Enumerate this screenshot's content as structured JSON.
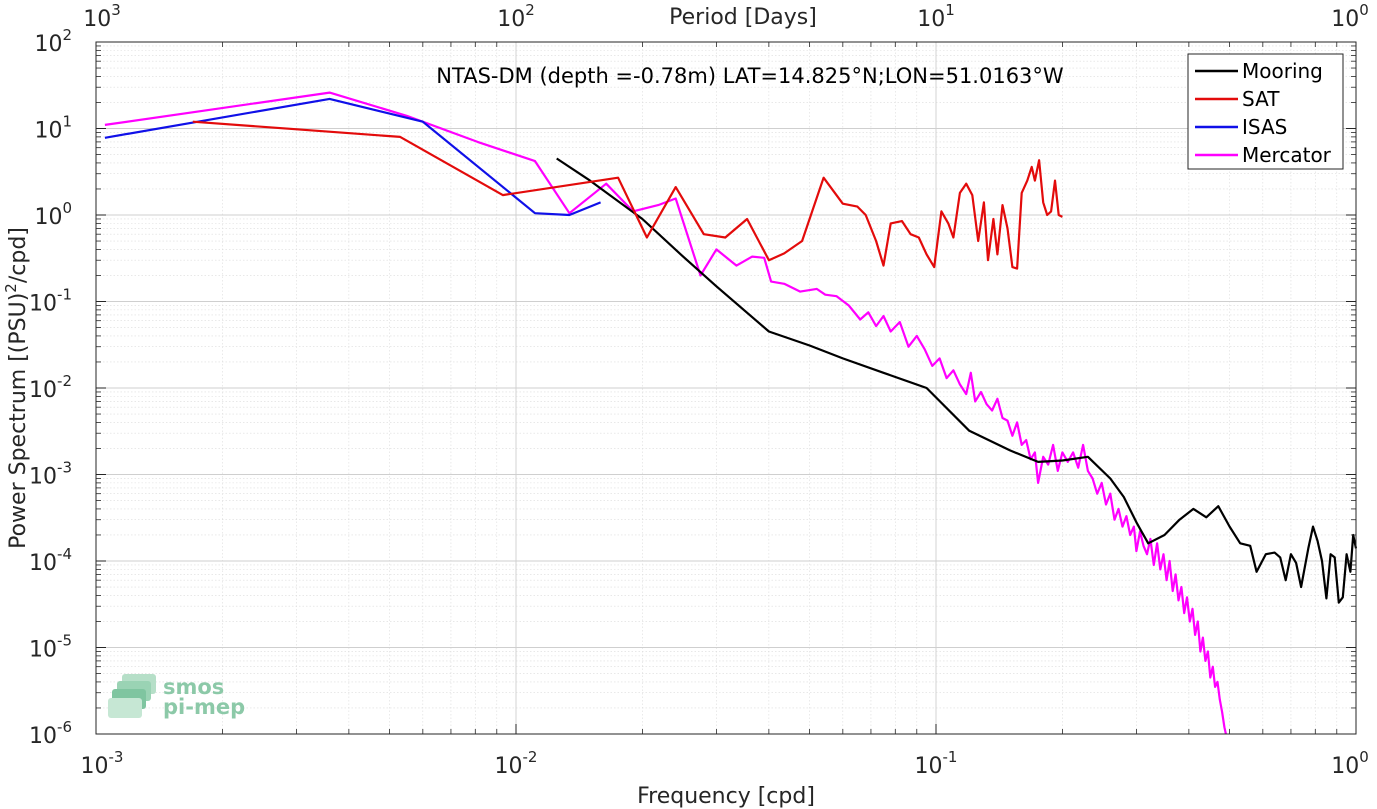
{
  "chart_data": {
    "type": "line",
    "title": "NTAS-DM (depth =-0.78m) LAT=14.825°N;LON=51.0163°W",
    "xlabel": "Frequency [cpd]",
    "ylabel_pre": "Power Spectrum [(PSU)",
    "ylabel_sup": "2",
    "ylabel_post": "/cpd]",
    "top_xlabel": "Period [Days]",
    "x_scale": "log",
    "y_scale": "log",
    "xlim": [
      0.001,
      1
    ],
    "ylim": [
      1e-06,
      100
    ],
    "top_xlim": [
      1000,
      1
    ],
    "grid": true,
    "legend_position": "top-right",
    "x_ticks": [
      {
        "base": "10",
        "exp": "-3",
        "value": 0.001
      },
      {
        "base": "10",
        "exp": "-2",
        "value": 0.01
      },
      {
        "base": "10",
        "exp": "-1",
        "value": 0.1
      },
      {
        "base": "10",
        "exp": "0",
        "value": 1
      }
    ],
    "top_ticks": [
      {
        "base": "10",
        "exp": "3",
        "value": 1000
      },
      {
        "base": "10",
        "exp": "2",
        "value": 100
      },
      {
        "base": "10",
        "exp": "1",
        "value": 10
      },
      {
        "base": "10",
        "exp": "0",
        "value": 1
      }
    ],
    "y_ticks": [
      {
        "base": "10",
        "exp": "2",
        "value": 100
      },
      {
        "base": "10",
        "exp": "1",
        "value": 10
      },
      {
        "base": "10",
        "exp": "0",
        "value": 1
      },
      {
        "base": "10",
        "exp": "-1",
        "value": 0.1
      },
      {
        "base": "10",
        "exp": "-2",
        "value": 0.01
      },
      {
        "base": "10",
        "exp": "-3",
        "value": 0.001
      },
      {
        "base": "10",
        "exp": "-4",
        "value": 0.0001
      },
      {
        "base": "10",
        "exp": "-5",
        "value": 1e-05
      },
      {
        "base": "10",
        "exp": "-6",
        "value": 1e-06
      }
    ],
    "series": [
      {
        "name": "Mooring",
        "color": "#000000",
        "points": [
          [
            0.0125,
            4.5
          ],
          [
            0.015,
            2.5
          ],
          [
            0.02,
            0.9
          ],
          [
            0.025,
            0.33
          ],
          [
            0.03,
            0.15
          ],
          [
            0.04,
            0.045
          ],
          [
            0.05,
            0.031
          ],
          [
            0.06,
            0.022
          ],
          [
            0.075,
            0.015
          ],
          [
            0.095,
            0.01
          ],
          [
            0.12,
            0.0032
          ],
          [
            0.15,
            0.0019
          ],
          [
            0.175,
            0.0014
          ],
          [
            0.2,
            0.00145
          ],
          [
            0.23,
            0.0016
          ],
          [
            0.26,
            0.0009
          ],
          [
            0.28,
            0.00055
          ],
          [
            0.3,
            0.00028
          ],
          [
            0.32,
            0.00016
          ],
          [
            0.35,
            0.0002
          ],
          [
            0.38,
            0.0003
          ],
          [
            0.41,
            0.0004
          ],
          [
            0.44,
            0.00032
          ],
          [
            0.47,
            0.00043
          ],
          [
            0.5,
            0.00025
          ],
          [
            0.53,
            0.00016
          ],
          [
            0.56,
            0.00015
          ],
          [
            0.58,
            7.5e-05
          ],
          [
            0.61,
            0.00012
          ],
          [
            0.64,
            0.000125
          ],
          [
            0.66,
            0.00011
          ],
          [
            0.68,
            6e-05
          ],
          [
            0.7,
            0.00012
          ],
          [
            0.72,
            9.5e-05
          ],
          [
            0.74,
            5e-05
          ],
          [
            0.77,
            0.00014
          ],
          [
            0.79,
            0.00025
          ],
          [
            0.81,
            0.00017
          ],
          [
            0.83,
            0.0001
          ],
          [
            0.85,
            3.7e-05
          ],
          [
            0.87,
            0.00012
          ],
          [
            0.89,
            0.00011
          ],
          [
            0.91,
            3.3e-05
          ],
          [
            0.93,
            3.8e-05
          ],
          [
            0.95,
            0.00012
          ],
          [
            0.97,
            7.5e-05
          ],
          [
            0.985,
            0.0002
          ],
          [
            1.0,
            0.00014
          ]
        ]
      },
      {
        "name": "SAT",
        "color": "#e30b0b",
        "points": [
          [
            0.0017,
            12
          ],
          [
            0.0053,
            8
          ],
          [
            0.0093,
            1.7
          ],
          [
            0.0175,
            2.7
          ],
          [
            0.0205,
            0.55
          ],
          [
            0.024,
            2.1
          ],
          [
            0.028,
            0.6
          ],
          [
            0.0315,
            0.55
          ],
          [
            0.0355,
            0.9
          ],
          [
            0.04,
            0.3
          ],
          [
            0.0435,
            0.36
          ],
          [
            0.048,
            0.5
          ],
          [
            0.054,
            2.7
          ],
          [
            0.06,
            1.35
          ],
          [
            0.065,
            1.25
          ],
          [
            0.068,
            1.0
          ],
          [
            0.072,
            0.5
          ],
          [
            0.075,
            0.26
          ],
          [
            0.078,
            0.8
          ],
          [
            0.083,
            0.85
          ],
          [
            0.087,
            0.6
          ],
          [
            0.091,
            0.55
          ],
          [
            0.095,
            0.35
          ],
          [
            0.099,
            0.25
          ],
          [
            0.103,
            1.1
          ],
          [
            0.107,
            0.8
          ],
          [
            0.11,
            0.55
          ],
          [
            0.114,
            1.8
          ],
          [
            0.118,
            2.3
          ],
          [
            0.122,
            1.7
          ],
          [
            0.126,
            0.5
          ],
          [
            0.13,
            1.4
          ],
          [
            0.133,
            0.3
          ],
          [
            0.137,
            0.9
          ],
          [
            0.14,
            0.35
          ],
          [
            0.144,
            1.3
          ],
          [
            0.148,
            0.7
          ],
          [
            0.152,
            0.25
          ],
          [
            0.156,
            0.24
          ],
          [
            0.16,
            1.8
          ],
          [
            0.165,
            2.5
          ],
          [
            0.169,
            3.6
          ],
          [
            0.172,
            2.5
          ],
          [
            0.176,
            4.3
          ],
          [
            0.18,
            1.4
          ],
          [
            0.184,
            1.0
          ],
          [
            0.188,
            1.1
          ],
          [
            0.192,
            2.5
          ],
          [
            0.196,
            1.0
          ],
          [
            0.2,
            0.95
          ]
        ]
      },
      {
        "name": "ISAS",
        "color": "#1010e8",
        "points": [
          [
            0.00105,
            7.8
          ],
          [
            0.0036,
            22
          ],
          [
            0.006,
            12
          ],
          [
            0.0111,
            1.05
          ],
          [
            0.0134,
            1.0
          ],
          [
            0.0159,
            1.4
          ]
        ]
      },
      {
        "name": "Mercator",
        "color": "#ff00ff",
        "points": [
          [
            0.00105,
            11
          ],
          [
            0.0036,
            26
          ],
          [
            0.0055,
            14
          ],
          [
            0.0081,
            7
          ],
          [
            0.0111,
            4.2
          ],
          [
            0.0134,
            1.05
          ],
          [
            0.0164,
            2.3
          ],
          [
            0.019,
            1.1
          ],
          [
            0.0218,
            1.3
          ],
          [
            0.024,
            1.55
          ],
          [
            0.0275,
            0.2
          ],
          [
            0.03,
            0.4
          ],
          [
            0.0335,
            0.26
          ],
          [
            0.0365,
            0.33
          ],
          [
            0.039,
            0.32
          ],
          [
            0.0405,
            0.17
          ],
          [
            0.0435,
            0.16
          ],
          [
            0.0475,
            0.13
          ],
          [
            0.052,
            0.14
          ],
          [
            0.0545,
            0.12
          ],
          [
            0.058,
            0.115
          ],
          [
            0.062,
            0.09
          ],
          [
            0.066,
            0.062
          ],
          [
            0.069,
            0.075
          ],
          [
            0.072,
            0.052
          ],
          [
            0.075,
            0.068
          ],
          [
            0.078,
            0.045
          ],
          [
            0.082,
            0.058
          ],
          [
            0.086,
            0.03
          ],
          [
            0.09,
            0.04
          ],
          [
            0.094,
            0.028
          ],
          [
            0.098,
            0.018
          ],
          [
            0.102,
            0.022
          ],
          [
            0.106,
            0.013
          ],
          [
            0.11,
            0.016
          ],
          [
            0.114,
            0.011
          ],
          [
            0.118,
            0.0085
          ],
          [
            0.121,
            0.015
          ],
          [
            0.124,
            0.007
          ],
          [
            0.128,
            0.009
          ],
          [
            0.132,
            0.0065
          ],
          [
            0.136,
            0.0055
          ],
          [
            0.14,
            0.0075
          ],
          [
            0.144,
            0.0045
          ],
          [
            0.148,
            0.0042
          ],
          [
            0.152,
            0.0028
          ],
          [
            0.156,
            0.004
          ],
          [
            0.16,
            0.0022
          ],
          [
            0.164,
            0.0025
          ],
          [
            0.168,
            0.0015
          ],
          [
            0.172,
            0.0018
          ],
          [
            0.175,
            0.0008
          ],
          [
            0.18,
            0.0016
          ],
          [
            0.185,
            0.0013
          ],
          [
            0.19,
            0.0022
          ],
          [
            0.195,
            0.0011
          ],
          [
            0.2,
            0.0018
          ],
          [
            0.206,
            0.0014
          ],
          [
            0.212,
            0.0018
          ],
          [
            0.218,
            0.0012
          ],
          [
            0.224,
            0.0022
          ],
          [
            0.23,
            0.0011
          ],
          [
            0.236,
            0.0009
          ],
          [
            0.242,
            0.0006
          ],
          [
            0.248,
            0.0008
          ],
          [
            0.254,
            0.00045
          ],
          [
            0.26,
            0.0006
          ],
          [
            0.266,
            0.0003
          ],
          [
            0.272,
            0.0004
          ],
          [
            0.278,
            0.00025
          ],
          [
            0.284,
            0.00033
          ],
          [
            0.29,
            0.0002
          ],
          [
            0.296,
            0.00025
          ],
          [
            0.3,
            0.00013
          ],
          [
            0.306,
            0.00022
          ],
          [
            0.312,
            0.00015
          ],
          [
            0.318,
            0.00012
          ],
          [
            0.324,
            0.00018
          ],
          [
            0.33,
            9e-05
          ],
          [
            0.336,
            0.00016
          ],
          [
            0.342,
            8e-05
          ],
          [
            0.348,
            0.00012
          ],
          [
            0.354,
            6e-05
          ],
          [
            0.36,
            0.0001
          ],
          [
            0.366,
            4.5e-05
          ],
          [
            0.372,
            7e-05
          ],
          [
            0.378,
            3.5e-05
          ],
          [
            0.384,
            5e-05
          ],
          [
            0.39,
            2.5e-05
          ],
          [
            0.396,
            3.8e-05
          ],
          [
            0.402,
            2e-05
          ],
          [
            0.408,
            2.8e-05
          ],
          [
            0.414,
            1.4e-05
          ],
          [
            0.42,
            2e-05
          ],
          [
            0.426,
            9e-06
          ],
          [
            0.432,
            1.3e-05
          ],
          [
            0.438,
            7e-06
          ],
          [
            0.444,
            9e-06
          ],
          [
            0.45,
            4.5e-06
          ],
          [
            0.456,
            6e-06
          ],
          [
            0.462,
            3.5e-06
          ],
          [
            0.468,
            4e-06
          ],
          [
            0.474,
            2.5e-06
          ],
          [
            0.48,
            1.8e-06
          ],
          [
            0.486,
            1.2e-06
          ],
          [
            0.49,
            1e-06
          ]
        ]
      }
    ]
  },
  "logo": {
    "line1": "smos",
    "line2": "pi-mep"
  }
}
